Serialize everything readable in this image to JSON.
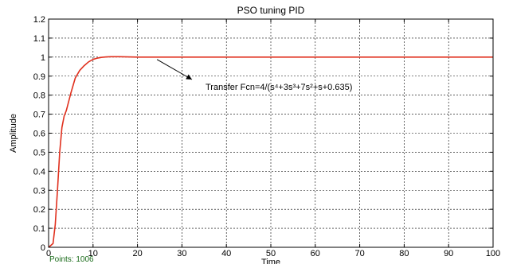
{
  "chart_data": {
    "type": "line",
    "title": "PSO tuning PID",
    "xlabel": "Time",
    "ylabel": "Amplitude",
    "xlim": [
      0,
      100
    ],
    "ylim": [
      0,
      1.2
    ],
    "xticks": [
      0,
      10,
      20,
      30,
      40,
      50,
      60,
      70,
      80,
      90,
      100
    ],
    "yticks": [
      0,
      0.1,
      0.2,
      0.3,
      0.4,
      0.5,
      0.6,
      0.7,
      0.8,
      0.9,
      1,
      1.1,
      1.2
    ],
    "grid": true,
    "series": [
      {
        "color": "#e0301e",
        "x": [
          0,
          1,
          1.5,
          2,
          2.5,
          3,
          3.5,
          4,
          5,
          6,
          7,
          8,
          9,
          10,
          11,
          12,
          13,
          14,
          16,
          18,
          20,
          25,
          30,
          35,
          40,
          50,
          60,
          70,
          80,
          90,
          100
        ],
        "y": [
          0,
          0.02,
          0.12,
          0.3,
          0.5,
          0.63,
          0.69,
          0.72,
          0.81,
          0.89,
          0.93,
          0.955,
          0.975,
          0.988,
          0.995,
          0.999,
          1.001,
          1.002,
          1.002,
          1.001,
          1.0,
          1.0,
          1.0,
          1.0,
          1.0,
          1.0,
          1.0,
          1.0,
          1.0,
          1.0,
          1.0
        ]
      }
    ],
    "annotation": {
      "text": "Transfer Fcn=4/(s⁴+3s³+7s²+s+0.635)",
      "arrow_to": [
        14,
        1.0
      ]
    }
  },
  "status": {
    "points_label": "Points: 1006"
  },
  "colors": {
    "plot_background": "#ffffff",
    "axes": "#000000",
    "grid": "#000000",
    "line": "#e0301e",
    "status_text": "#1a6b1a"
  }
}
